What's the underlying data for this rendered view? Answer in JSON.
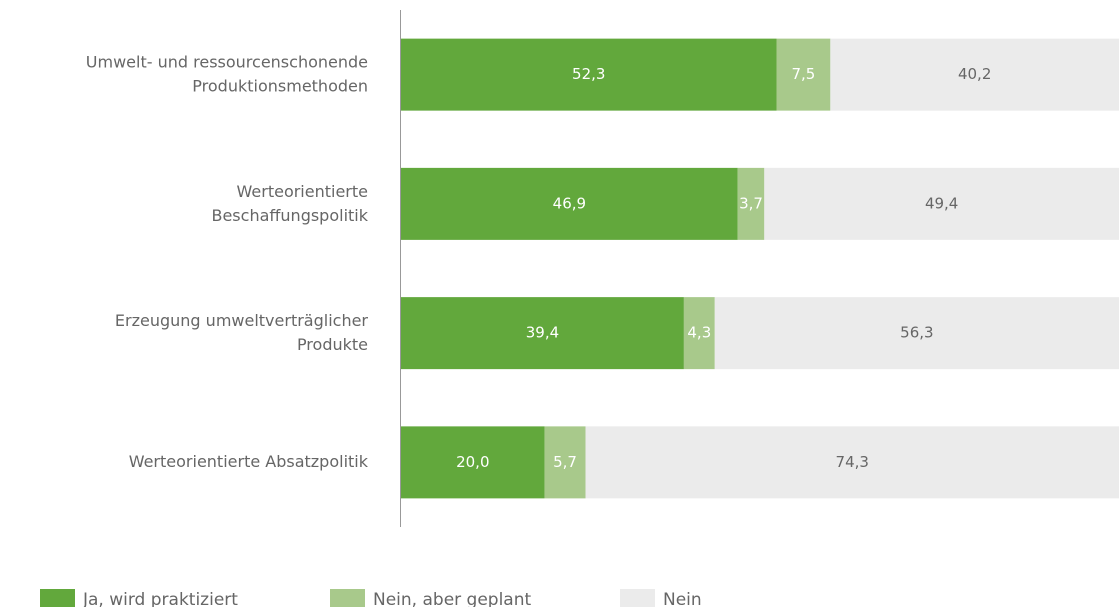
{
  "chart_data": {
    "type": "stacked-bar-horizontal",
    "categories": [
      "Umwelt- und ressourcenschonende\nProduktionsmethoden",
      "Werteorientierte\nBeschaffungspolitik",
      "Erzeugung umweltverträglicher\nProdukte",
      "Werteorientierte Absatzpolitik"
    ],
    "series": [
      {
        "name": "Ja, wird praktiziert",
        "color": "#62a83c",
        "label_color": "#ffffff",
        "values": [
          52.3,
          46.9,
          39.4,
          20.0
        ],
        "value_labels": [
          "52,3",
          "46,9",
          "39,4",
          "20,0"
        ]
      },
      {
        "name": "Nein, aber geplant",
        "color": "#a8c98b",
        "label_color": "#ffffff",
        "values": [
          7.5,
          3.7,
          4.3,
          5.7
        ],
        "value_labels": [
          "7,5",
          "3,7",
          "4,3",
          "5,7"
        ]
      },
      {
        "name": "Nein",
        "color": "#ebebeb",
        "label_color": "#666666",
        "values": [
          40.2,
          49.4,
          56.3,
          74.3
        ],
        "value_labels": [
          "40,2",
          "49,4",
          "56,3",
          "74,3"
        ]
      }
    ],
    "xlim": [
      0,
      100
    ],
    "legend": "bottom"
  }
}
